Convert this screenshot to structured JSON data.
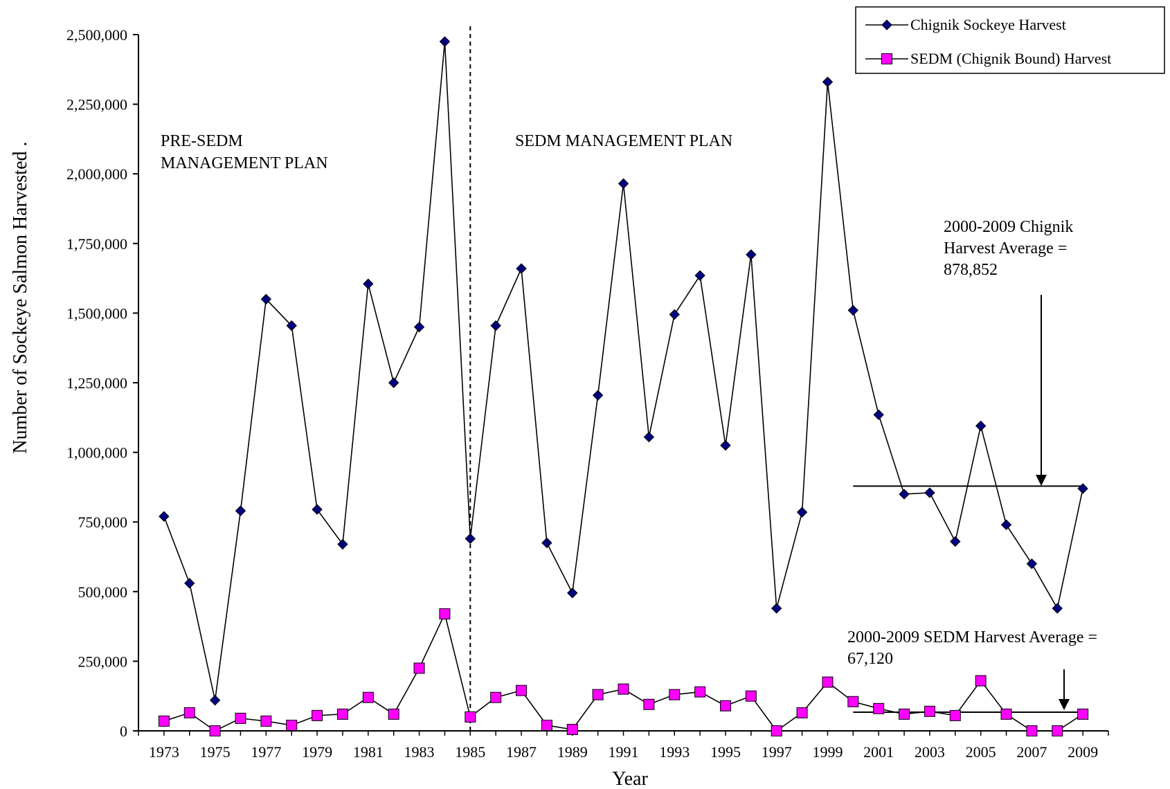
{
  "chart_data": {
    "type": "line",
    "xlabel": "Year",
    "ylabel": "Number of Sockeye Salmon Harvested  .",
    "ylim": [
      0,
      2500000
    ],
    "yticks": [
      "0",
      "250,000",
      "500,000",
      "750,000",
      "1,000,000",
      "1,250,000",
      "1,500,000",
      "1,750,000",
      "2,000,000",
      "2,250,000",
      "2,500,000"
    ],
    "ytick_values": [
      0,
      250000,
      500000,
      750000,
      1000000,
      1250000,
      1500000,
      1750000,
      2000000,
      2250000,
      2500000
    ],
    "x": [
      1973,
      1974,
      1975,
      1976,
      1977,
      1978,
      1979,
      1980,
      1981,
      1982,
      1983,
      1984,
      1985,
      1986,
      1987,
      1988,
      1989,
      1990,
      1991,
      1992,
      1993,
      1994,
      1995,
      1996,
      1997,
      1998,
      1999,
      2000,
      2001,
      2002,
      2003,
      2004,
      2005,
      2006,
      2007,
      2008,
      2009
    ],
    "xticks": [
      "1973",
      "1975",
      "1977",
      "1979",
      "1981",
      "1983",
      "1985",
      "1987",
      "1989",
      "1991",
      "1993",
      "1995",
      "1997",
      "1999",
      "2001",
      "2003",
      "2005",
      "2007",
      "2009"
    ],
    "xtick_values": [
      1973,
      1975,
      1977,
      1979,
      1981,
      1983,
      1985,
      1987,
      1989,
      1991,
      1993,
      1995,
      1997,
      1999,
      2001,
      2003,
      2005,
      2007,
      2009
    ],
    "series": [
      {
        "name": "Chignik Sockeye Harvest",
        "color": "#000080",
        "marker": "diamond",
        "values": [
          770000,
          530000,
          110000,
          790000,
          1550000,
          1455000,
          795000,
          670000,
          1605000,
          1250000,
          1450000,
          2475000,
          690000,
          1455000,
          1660000,
          675000,
          495000,
          1205000,
          1965000,
          1055000,
          1495000,
          1635000,
          1025000,
          1710000,
          440000,
          785000,
          2330000,
          1510000,
          1135000,
          850000,
          855000,
          680000,
          1095000,
          740000,
          600000,
          440000,
          870000
        ]
      },
      {
        "name": "SEDM (Chignik Bound) Harvest",
        "color": "#ff00ff",
        "marker": "square",
        "values": [
          35000,
          65000,
          0,
          45000,
          35000,
          20000,
          55000,
          60000,
          120000,
          60000,
          225000,
          420000,
          50000,
          120000,
          145000,
          20000,
          5000,
          130000,
          150000,
          95000,
          130000,
          140000,
          90000,
          125000,
          0,
          65000,
          175000,
          105000,
          80000,
          60000,
          70000,
          55000,
          180000,
          60000,
          0,
          0,
          60000
        ]
      }
    ],
    "divider_year": 1985,
    "annotations": {
      "pre_line1": "PRE-SEDM",
      "pre_line2": "MANAGEMENT  PLAN",
      "post_line1": "SEDM MANAGEMENT  PLAN",
      "chignik_avg_line1": "2000-2009 Chignik",
      "chignik_avg_line2": "Harvest Average =",
      "chignik_avg_line3": "878,852",
      "sedm_avg_line1": "2000-2009 SEDM Harvest Average =",
      "sedm_avg_line2": "67,120"
    },
    "averages": [
      {
        "series": "Chignik Sockeye Harvest",
        "value": 878852,
        "from": 2000,
        "to": 2009
      },
      {
        "series": "SEDM (Chignik Bound) Harvest",
        "value": 67120,
        "from": 2000,
        "to": 2009
      }
    ],
    "legend_position": "top-right",
    "grid": false
  }
}
